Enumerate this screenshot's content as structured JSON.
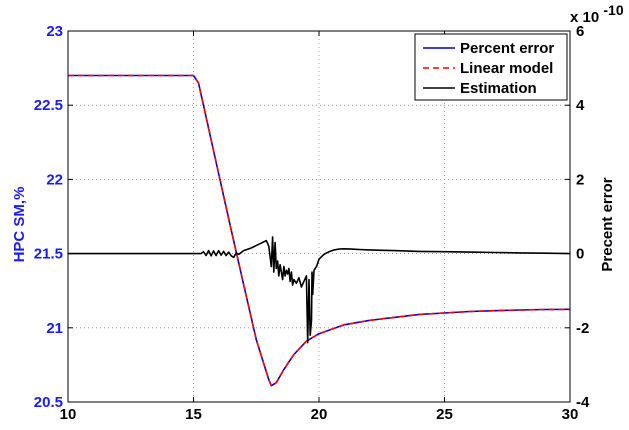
{
  "chart_data": {
    "type": "line",
    "xlim": [
      10,
      30
    ],
    "xticks": [
      "10",
      "15",
      "20",
      "25",
      "30"
    ],
    "xtick_values": [
      10,
      15,
      20,
      25,
      30
    ],
    "left_axis": {
      "label": "HPC SM,%",
      "color": "#1a1aff",
      "ylim": [
        20.5,
        23
      ],
      "ticks": [
        "20.5",
        "21",
        "21.5",
        "22",
        "22.5",
        "23"
      ],
      "tick_values": [
        20.5,
        21,
        21.5,
        22,
        22.5,
        23
      ]
    },
    "right_axis": {
      "label": "Precent error",
      "color": "#000000",
      "ylim": [
        -4,
        6
      ],
      "multiplier_base": "x 10",
      "multiplier_exp": "-10",
      "ticks": [
        "-4",
        "-2",
        "0",
        "2",
        "4",
        "6"
      ],
      "tick_values": [
        -4,
        -2,
        0,
        2,
        4,
        6
      ]
    },
    "grid": true,
    "legend_position": "top-right",
    "legend": [
      {
        "name": "Percent error",
        "color": "#0000cc",
        "style": "solid"
      },
      {
        "name": "Linear model",
        "color": "#ff0000",
        "style": "dashed"
      },
      {
        "name": "Estimation",
        "color": "#000000",
        "style": "solid"
      }
    ],
    "series": [
      {
        "name": "Percent error",
        "axis": "left",
        "x": [
          10,
          15,
          15.2,
          15.5,
          16,
          16.5,
          17,
          17.5,
          18,
          18.1,
          18.3,
          18.6,
          19,
          19.5,
          20,
          20.5,
          21,
          22,
          23,
          24,
          25,
          26,
          27,
          28,
          29,
          30
        ],
        "y": [
          22.7,
          22.7,
          22.65,
          22.42,
          22.04,
          21.66,
          21.29,
          20.92,
          20.65,
          20.61,
          20.63,
          20.72,
          20.82,
          20.91,
          20.96,
          20.99,
          21.02,
          21.05,
          21.07,
          21.09,
          21.1,
          21.11,
          21.115,
          21.12,
          21.123,
          21.125
        ]
      },
      {
        "name": "Linear model",
        "axis": "left",
        "x": [
          10,
          15,
          15.2,
          15.5,
          16,
          16.5,
          17,
          17.5,
          18,
          18.1,
          18.3,
          18.6,
          19,
          19.5,
          20,
          20.5,
          21,
          22,
          23,
          24,
          25,
          26,
          27,
          28,
          29,
          30
        ],
        "y": [
          22.7,
          22.7,
          22.65,
          22.42,
          22.04,
          21.66,
          21.29,
          20.92,
          20.65,
          20.61,
          20.63,
          20.72,
          20.82,
          20.91,
          20.96,
          20.99,
          21.02,
          21.05,
          21.07,
          21.09,
          21.1,
          21.11,
          21.115,
          21.12,
          21.123,
          21.125
        ]
      },
      {
        "name": "Estimation",
        "axis": "right",
        "x": [
          10,
          15.3,
          15.4,
          15.5,
          15.6,
          15.7,
          15.8,
          15.9,
          16,
          16.1,
          16.2,
          16.3,
          16.4,
          16.5,
          16.6,
          16.7,
          16.8,
          17,
          17.3,
          17.6,
          17.9,
          18.0,
          18.1,
          18.15,
          18.2,
          18.25,
          18.3,
          18.35,
          18.4,
          18.45,
          18.5,
          18.55,
          18.6,
          18.65,
          18.7,
          18.75,
          18.8,
          18.85,
          18.9,
          18.95,
          19.0,
          19.1,
          19.2,
          19.3,
          19.4,
          19.5,
          19.55,
          19.6,
          19.65,
          19.7,
          19.72,
          19.75,
          19.8,
          19.9,
          20.0,
          20.2,
          20.4,
          20.6,
          20.8,
          21.0,
          21.3,
          21.6,
          22,
          22.5,
          23,
          24,
          25,
          26,
          27,
          28,
          29,
          30
        ],
        "y": [
          0,
          0,
          0.05,
          -0.05,
          0.08,
          -0.06,
          0.07,
          -0.05,
          0.08,
          -0.04,
          0.06,
          -0.05,
          0.04,
          -0.06,
          -0.1,
          0.02,
          -0.02,
          0.08,
          0.15,
          0.25,
          0.35,
          0.2,
          -0.35,
          0.45,
          -0.5,
          0.3,
          -0.4,
          -0.2,
          -0.6,
          -0.3,
          -0.5,
          -0.7,
          -0.35,
          -0.6,
          -0.45,
          -0.55,
          -0.4,
          -0.75,
          -0.5,
          -0.85,
          -0.7,
          -0.8,
          -0.65,
          -0.9,
          -0.75,
          -0.6,
          -2.4,
          -0.7,
          -2.2,
          -1.8,
          -0.5,
          -1.1,
          -0.45,
          -0.35,
          -0.15,
          -0.02,
          0.05,
          0.1,
          0.12,
          0.13,
          0.12,
          0.11,
          0.1,
          0.09,
          0.08,
          0.06,
          0.05,
          0.04,
          0.03,
          0.02,
          0.01,
          0.0
        ]
      }
    ]
  }
}
